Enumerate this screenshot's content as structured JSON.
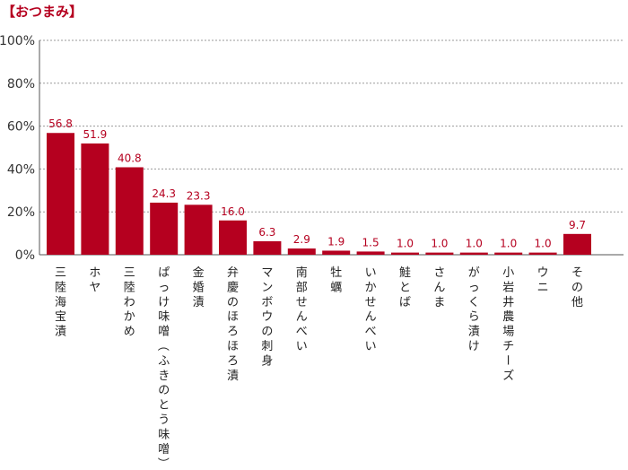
{
  "page": {
    "title": "【おつまみ】"
  },
  "chart_data": {
    "type": "bar",
    "title": "【おつまみ】",
    "xlabel": "",
    "ylabel": "",
    "ylim": [
      0,
      100
    ],
    "yticks": [
      "0%",
      "20%",
      "40%",
      "60%",
      "80%",
      "100%"
    ],
    "grid": true,
    "bar_color": "#b5001f",
    "categories": [
      "三陸海宝漬",
      "ホヤ",
      "三陸わかめ",
      "ぱっけ味噌（ふきのとう味噌）",
      "金婚漬",
      "弁慶のほろほろ漬",
      "マンボウの刺身",
      "南部せんべい",
      "牡蠣",
      "いかせんべい",
      "鮭とば",
      "さんま",
      "がっくら漬け",
      "小岩井農場チーズ",
      "ウニ",
      "その他"
    ],
    "values": [
      56.8,
      51.9,
      40.8,
      24.3,
      23.3,
      16.0,
      6.3,
      2.9,
      1.9,
      1.5,
      1.0,
      1.0,
      1.0,
      1.0,
      1.0,
      9.7
    ],
    "value_labels": [
      "56.8",
      "51.9",
      "40.8",
      "24.3",
      "23.3",
      "16.0",
      "6.3",
      "2.9",
      "1.9",
      "1.5",
      "1.0",
      "1.0",
      "1.0",
      "1.0",
      "1.0",
      "9.7"
    ]
  }
}
